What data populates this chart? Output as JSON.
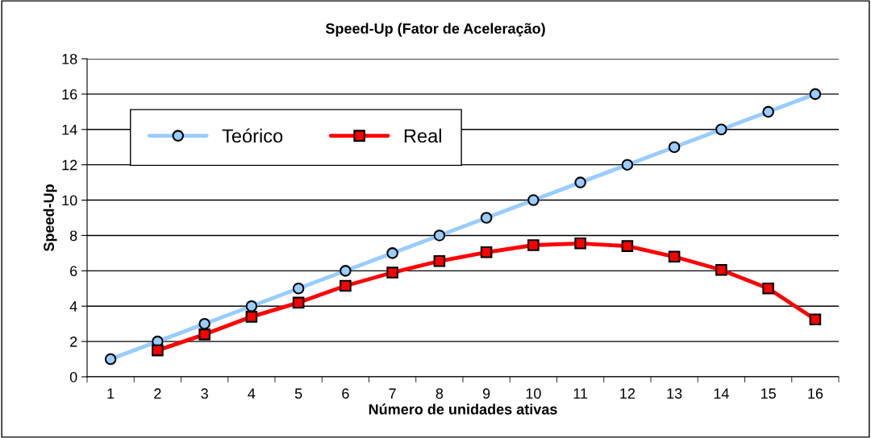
{
  "chart_data": {
    "type": "line",
    "title": "Speed-Up (Fator de Aceleração)",
    "xlabel": "Número de unidades ativas",
    "ylabel": "Speed-Up",
    "categories": [
      "1",
      "2",
      "3",
      "4",
      "5",
      "6",
      "7",
      "8",
      "9",
      "10",
      "11",
      "12",
      "13",
      "14",
      "15",
      "16"
    ],
    "series": [
      {
        "name": "Teórico",
        "color": "#99ccff",
        "marker": "circle",
        "values": [
          1,
          2,
          3,
          4,
          5,
          6,
          7,
          8,
          9,
          10,
          11,
          12,
          13,
          14,
          15,
          16
        ]
      },
      {
        "name": "Real",
        "color": "#ff0000",
        "marker": "square",
        "values": [
          null,
          1.5,
          2.4,
          3.4,
          4.2,
          5.15,
          5.9,
          6.55,
          7.05,
          7.45,
          7.55,
          7.4,
          6.8,
          6.05,
          5.0,
          3.25
        ]
      }
    ],
    "ylim": [
      0,
      18
    ],
    "yticks": [
      0,
      2,
      4,
      6,
      8,
      10,
      12,
      14,
      16,
      18
    ],
    "grid": "y",
    "legend": "top left",
    "line_style": "solid"
  }
}
